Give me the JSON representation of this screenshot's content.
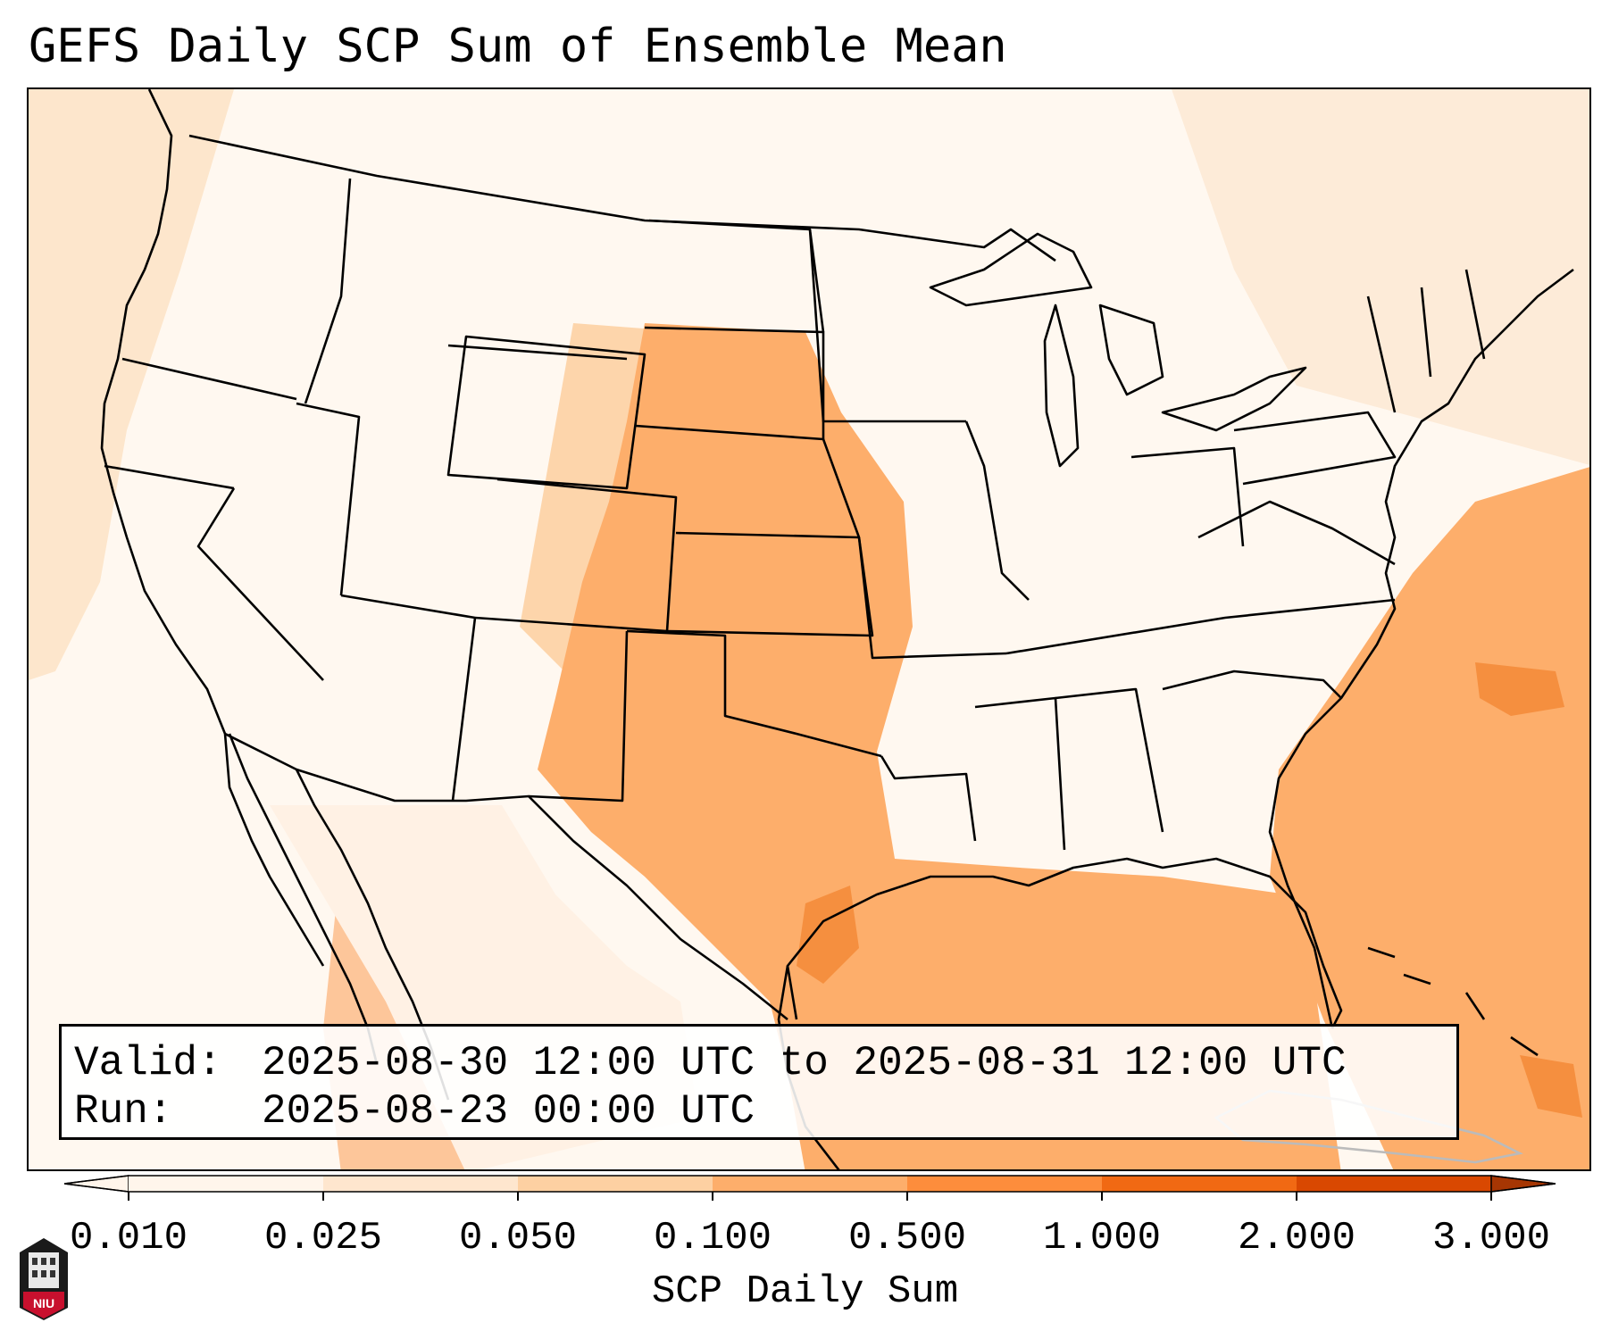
{
  "title": "GEFS Daily SCP Sum of Ensemble Mean",
  "info": {
    "valid_label": "Valid:",
    "valid_value": "2025-08-30 12:00 UTC to 2025-08-31 12:00 UTC",
    "run_label": "Run:",
    "run_value": "2025-08-23 00:00 UTC"
  },
  "colorbar": {
    "label": "SCP Daily Sum",
    "ticks": [
      "0.010",
      "0.025",
      "0.050",
      "0.100",
      "0.500",
      "1.000",
      "2.000",
      "3.000"
    ],
    "colors": [
      "#fff5eb",
      "#fee6ce",
      "#fdd0a2",
      "#fdae6b",
      "#fd8d3c",
      "#f16913",
      "#d94801",
      "#a63603"
    ],
    "extend": "both"
  },
  "logo": {
    "text": "NIU",
    "color": "#c8102e"
  }
}
